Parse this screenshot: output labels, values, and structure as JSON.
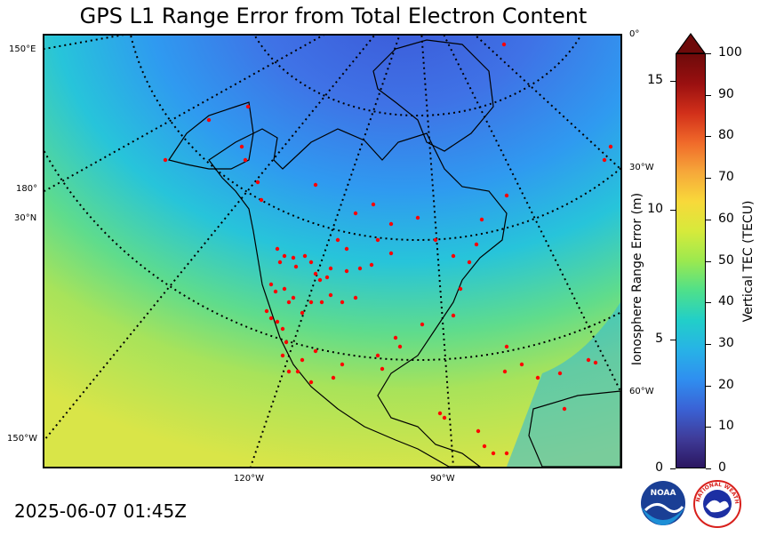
{
  "title": "GPS L1 Range Error from Total Electron Content",
  "timestamp": "2025-06-07 01:45Z",
  "map": {
    "lon_labels_bottom": [
      "120°W",
      "90°W"
    ],
    "left_labels": [
      "150°E",
      "180°",
      "30°N",
      "150°W"
    ],
    "right_labels": [
      "0°",
      "30°W",
      "60°W"
    ],
    "colors": {
      "high_lat": "#3d6ae0",
      "mid": "#2ab7e6",
      "tropics": "#9ee36b",
      "south": "#d8e844",
      "station": "#ff0000"
    }
  },
  "colorbar": {
    "right_label": "Vertical TEC (TECU)",
    "left_label": "Ionosphere Range Error (m)",
    "tec_ticks": [
      "0",
      "10",
      "20",
      "30",
      "40",
      "50",
      "60",
      "70",
      "80",
      "90",
      "100"
    ],
    "range_ticks": [
      "0",
      "5",
      "10",
      "15"
    ],
    "colors": [
      "#2b1660",
      "#3f3c9a",
      "#3a63d6",
      "#2f8ff0",
      "#27b3e6",
      "#22cfc8",
      "#4fe08a",
      "#9be94f",
      "#d6ea3b",
      "#f8d93a",
      "#f6a83a",
      "#f06a2a",
      "#d2301a",
      "#9a1010",
      "#6e0a0a"
    ]
  },
  "logos": {
    "noaa": "NOAA",
    "nws": "NATIONAL WEATHER SERVICE"
  }
}
